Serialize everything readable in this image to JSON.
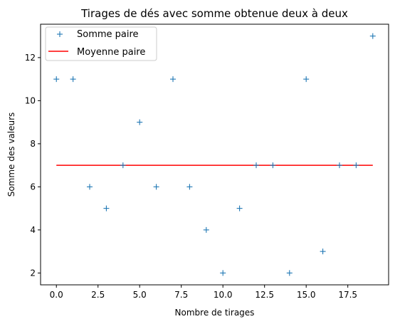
{
  "chart_data": {
    "type": "scatter",
    "title": "Tirages de dés avec somme obtenue deux à deux",
    "xlabel": "Nombre de tirages",
    "ylabel": "Somme des valeurs",
    "xlim": [
      -0.95,
      19.95
    ],
    "ylim": [
      1.45,
      13.55
    ],
    "xticks": [
      "0.0",
      "2.5",
      "5.0",
      "7.5",
      "10.0",
      "12.5",
      "15.0",
      "17.5"
    ],
    "yticks": [
      "2",
      "4",
      "6",
      "8",
      "10",
      "12"
    ],
    "xtick_values": [
      0,
      2.5,
      5,
      7.5,
      10,
      12.5,
      15,
      17.5
    ],
    "ytick_values": [
      2,
      4,
      6,
      8,
      10,
      12
    ],
    "grid": false,
    "legend_position": "top-left",
    "series": [
      {
        "name": "Somme paire",
        "kind": "scatter",
        "marker": "+",
        "color": "#1f77b4",
        "x": [
          0,
          1,
          2,
          3,
          4,
          5,
          6,
          7,
          8,
          9,
          10,
          11,
          12,
          13,
          14,
          15,
          16,
          17,
          18,
          19
        ],
        "y": [
          11,
          11,
          6,
          5,
          7,
          9,
          6,
          11,
          6,
          4,
          2,
          5,
          7,
          7,
          2,
          11,
          3,
          7,
          7,
          13
        ]
      },
      {
        "name": "Moyenne paire",
        "kind": "line",
        "color": "#ff0000",
        "x": [
          0,
          19
        ],
        "y": [
          7,
          7
        ]
      }
    ]
  }
}
